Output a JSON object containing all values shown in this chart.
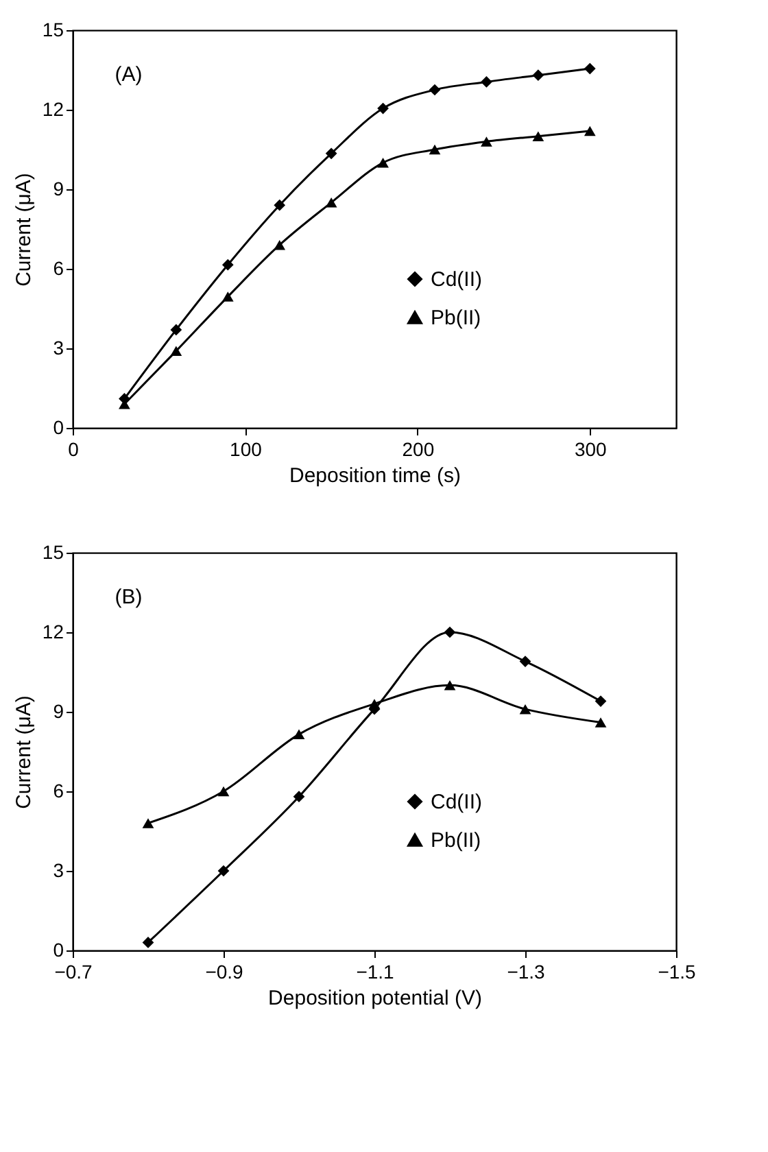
{
  "chart_data": [
    {
      "type": "line",
      "xlabel": "Deposition time (s)",
      "ylabel": "Current (μA)",
      "annotations": [
        "(A)"
      ],
      "x": [
        30,
        60,
        90,
        120,
        150,
        180,
        210,
        240,
        270,
        300
      ],
      "series": [
        {
          "name": "Cd(II)",
          "color": "#000000",
          "marker": "diamond",
          "values": [
            1.1,
            3.7,
            6.15,
            8.4,
            10.35,
            12.05,
            12.75,
            13.05,
            13.3,
            13.55
          ]
        },
        {
          "name": "Pb(II)",
          "color": "#000000",
          "marker": "triangle",
          "values": [
            0.9,
            2.9,
            4.95,
            6.9,
            8.5,
            10.0,
            10.5,
            10.8,
            11.0,
            11.2
          ]
        }
      ],
      "xlim": [
        0,
        350
      ],
      "xticks": [
        0,
        100,
        200,
        300
      ],
      "ylim": [
        0,
        15
      ],
      "yticks": [
        0,
        3,
        6,
        9,
        12,
        15
      ],
      "grid": false,
      "legend": "center",
      "line_style": "solid"
    },
    {
      "type": "line",
      "xlabel": "Deposition potential (V)",
      "ylabel": "Current (μA)",
      "annotations": [
        "(B)"
      ],
      "x": [
        -0.8,
        -0.9,
        -1.0,
        -1.1,
        -1.2,
        -1.3,
        -1.4
      ],
      "series": [
        {
          "name": "Cd(II)",
          "color": "#000000",
          "marker": "diamond",
          "values": [
            0.3,
            3.0,
            5.8,
            9.1,
            12.0,
            10.9,
            9.4
          ]
        },
        {
          "name": "Pb(II)",
          "color": "#000000",
          "marker": "triangle",
          "values": [
            4.8,
            6.0,
            8.15,
            9.3,
            10.0,
            9.1,
            8.6
          ]
        }
      ],
      "xlim": [
        -0.7,
        -1.5
      ],
      "xticks": [
        {
          "value": -0.7,
          "label": "−0.7"
        },
        {
          "value": -0.9,
          "label": "−0.9"
        },
        {
          "value": -1.1,
          "label": "−1.1"
        },
        {
          "value": -1.3,
          "label": "−1.3"
        },
        {
          "value": -1.5,
          "label": "−1.5"
        }
      ],
      "ylim": [
        0,
        15
      ],
      "yticks": [
        0,
        3,
        6,
        9,
        12,
        15
      ],
      "grid": false,
      "legend": "center",
      "line_style": "solid"
    }
  ]
}
